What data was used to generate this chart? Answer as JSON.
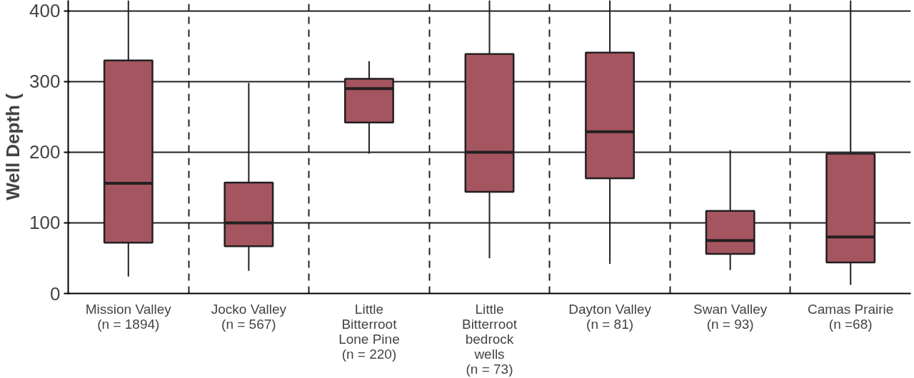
{
  "chart_data": {
    "type": "box",
    "ylabel": "Well Depth (",
    "categories": [
      "Mission Valley\n(n = 1894)",
      "Jocko Valley\n(n = 567)",
      "Little\nBitterroot\nLone Pine\n(n = 220)",
      "Little\nBitterroot\nbedrock\nwells\n(n = 73)",
      "Dayton Valley\n(n = 81)",
      "Swan Valley\n(n = 93)",
      "Camas Prairie\n(n =68)"
    ],
    "series": [
      {
        "color": "#a55560",
        "boxes": [
          {
            "low": 24,
            "q1": 72,
            "median": 156,
            "q3": 330,
            "high": 415
          },
          {
            "low": 32,
            "q1": 67,
            "median": 100,
            "q3": 157,
            "high": 298
          },
          {
            "low": 198,
            "q1": 242,
            "median": 290,
            "q3": 304,
            "high": 329
          },
          {
            "low": 50,
            "q1": 144,
            "median": 200,
            "q3": 339,
            "high": 415
          },
          {
            "low": 42,
            "q1": 163,
            "median": 229,
            "q3": 341,
            "high": 415
          },
          {
            "low": 33,
            "q1": 56,
            "median": 75,
            "q3": 117,
            "high": 203
          },
          {
            "low": 12,
            "q1": 44,
            "median": 80,
            "q3": 198,
            "high": 415
          }
        ]
      }
    ],
    "ylim": [
      0,
      415
    ],
    "yticks": [
      0,
      100,
      200,
      300,
      400
    ],
    "grid": true
  }
}
